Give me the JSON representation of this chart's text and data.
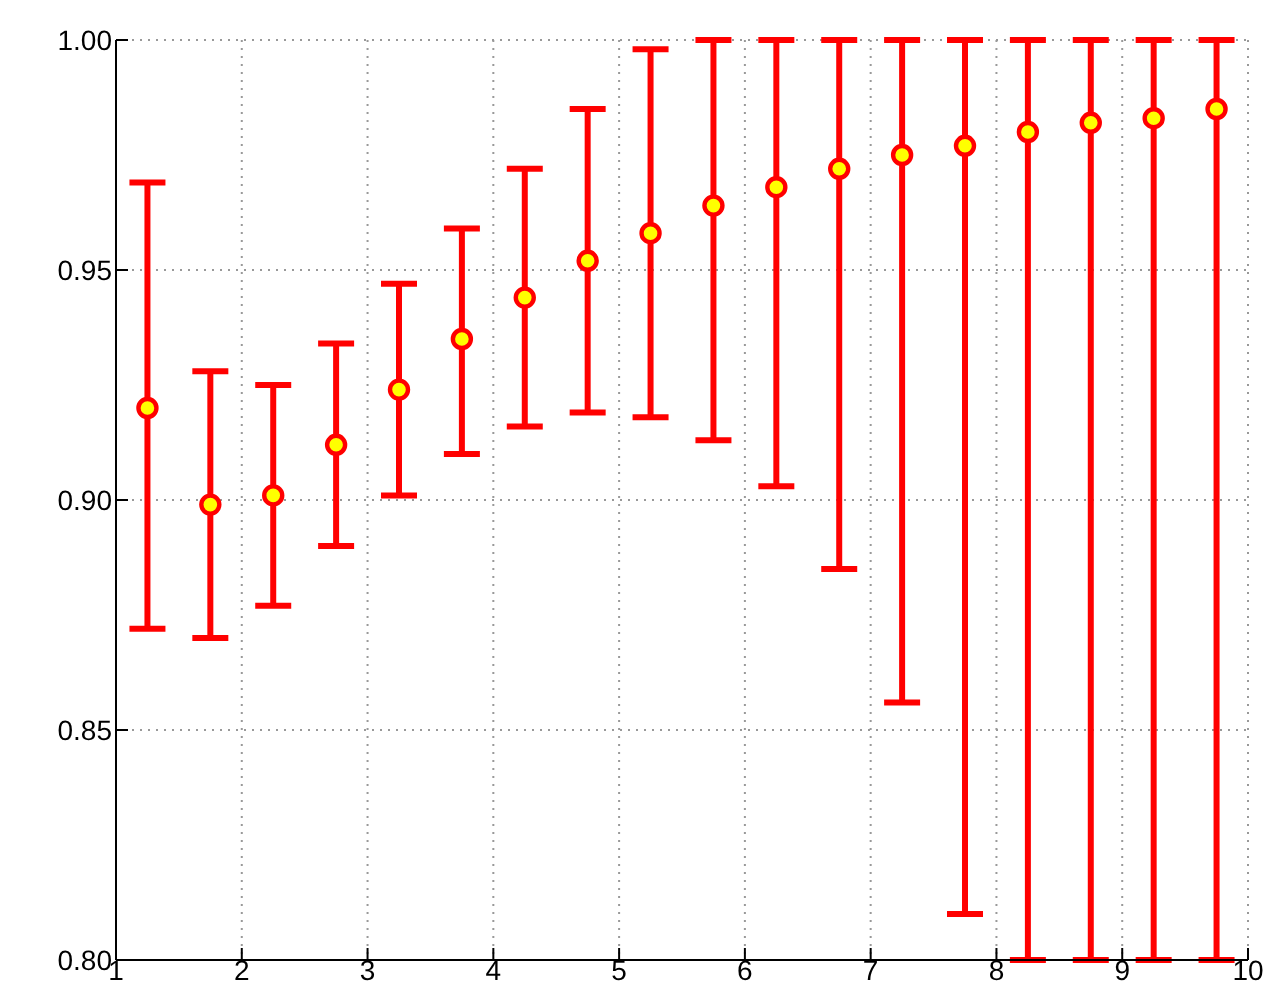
{
  "chart_data": {
    "type": "scatter",
    "x": [
      1.25,
      1.75,
      2.25,
      2.75,
      3.25,
      3.75,
      4.25,
      4.75,
      5.25,
      5.75,
      6.25,
      6.75,
      7.25,
      7.75,
      8.25,
      8.75,
      9.25,
      9.75
    ],
    "series": [
      {
        "color": "#ff0000",
        "values": [
          0.92,
          0.899,
          0.901,
          0.912,
          0.924,
          0.935,
          0.944,
          0.952,
          0.958,
          0.964,
          0.968,
          0.972,
          0.975,
          0.977,
          0.98,
          0.982,
          0.983,
          0.985
        ],
        "errors": [
          [
            0.872,
            0.969
          ],
          [
            0.87,
            0.928
          ],
          [
            0.877,
            0.925
          ],
          [
            0.89,
            0.934
          ],
          [
            0.901,
            0.947
          ],
          [
            0.91,
            0.959
          ],
          [
            0.916,
            0.972
          ],
          [
            0.919,
            0.985
          ],
          [
            0.918,
            0.998
          ],
          [
            0.913,
            1.0
          ],
          [
            0.903,
            1.0
          ],
          [
            0.885,
            1.0
          ],
          [
            0.856,
            1.0
          ],
          [
            0.81,
            1.0
          ],
          [
            0.8,
            1.0
          ],
          [
            0.8,
            1.0
          ],
          [
            0.8,
            1.0
          ],
          [
            0.8,
            1.0
          ]
        ]
      }
    ],
    "xlim": [
      1,
      10
    ],
    "xticks": [
      1,
      2,
      3,
      4,
      5,
      6,
      7,
      8,
      9,
      10
    ],
    "ylim": [
      0.8,
      1.0
    ],
    "yticks": [
      {
        "value": 0.8,
        "label": "0.80"
      },
      {
        "value": 0.85,
        "label": "0.85"
      },
      {
        "value": 0.9,
        "label": "0.90"
      },
      {
        "value": 0.95,
        "label": "0.95"
      },
      {
        "value": 1.0,
        "label": "1.00"
      }
    ],
    "grid": true,
    "marker": "circle"
  }
}
